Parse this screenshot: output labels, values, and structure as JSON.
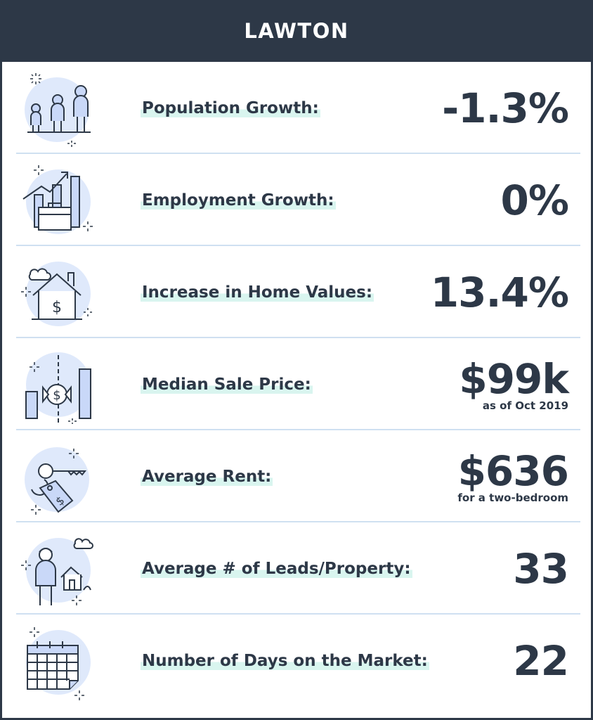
{
  "header": {
    "title": "LAWTON"
  },
  "rows": [
    {
      "label": "Population Growth:",
      "value": "-1.3%",
      "note": "",
      "icon": "family-icon"
    },
    {
      "label": "Employment Growth:",
      "value": "0%",
      "note": "",
      "icon": "briefcase-growth-icon"
    },
    {
      "label": "Increase in Home Values:",
      "value": "13.4%",
      "note": "",
      "icon": "house-dollar-icon"
    },
    {
      "label": "Median Sale Price:",
      "value": "$99k",
      "note": "as of Oct 2019",
      "icon": "price-bars-icon"
    },
    {
      "label": "Average Rent:",
      "value": "$636",
      "note": "for a two-bedroom",
      "icon": "key-tag-icon"
    },
    {
      "label": "Average # of Leads/Property:",
      "value": "33",
      "note": "",
      "icon": "person-house-icon"
    },
    {
      "label": "Number of Days on the Market:",
      "value": "22",
      "note": "",
      "icon": "calendar-icon"
    }
  ],
  "colors": {
    "dark": "#2d3847",
    "accent_blue": "#dfe9fb",
    "icon_fill": "#c9d8f8",
    "highlight": "#d9f5ef",
    "divider": "#cfe0f1"
  }
}
